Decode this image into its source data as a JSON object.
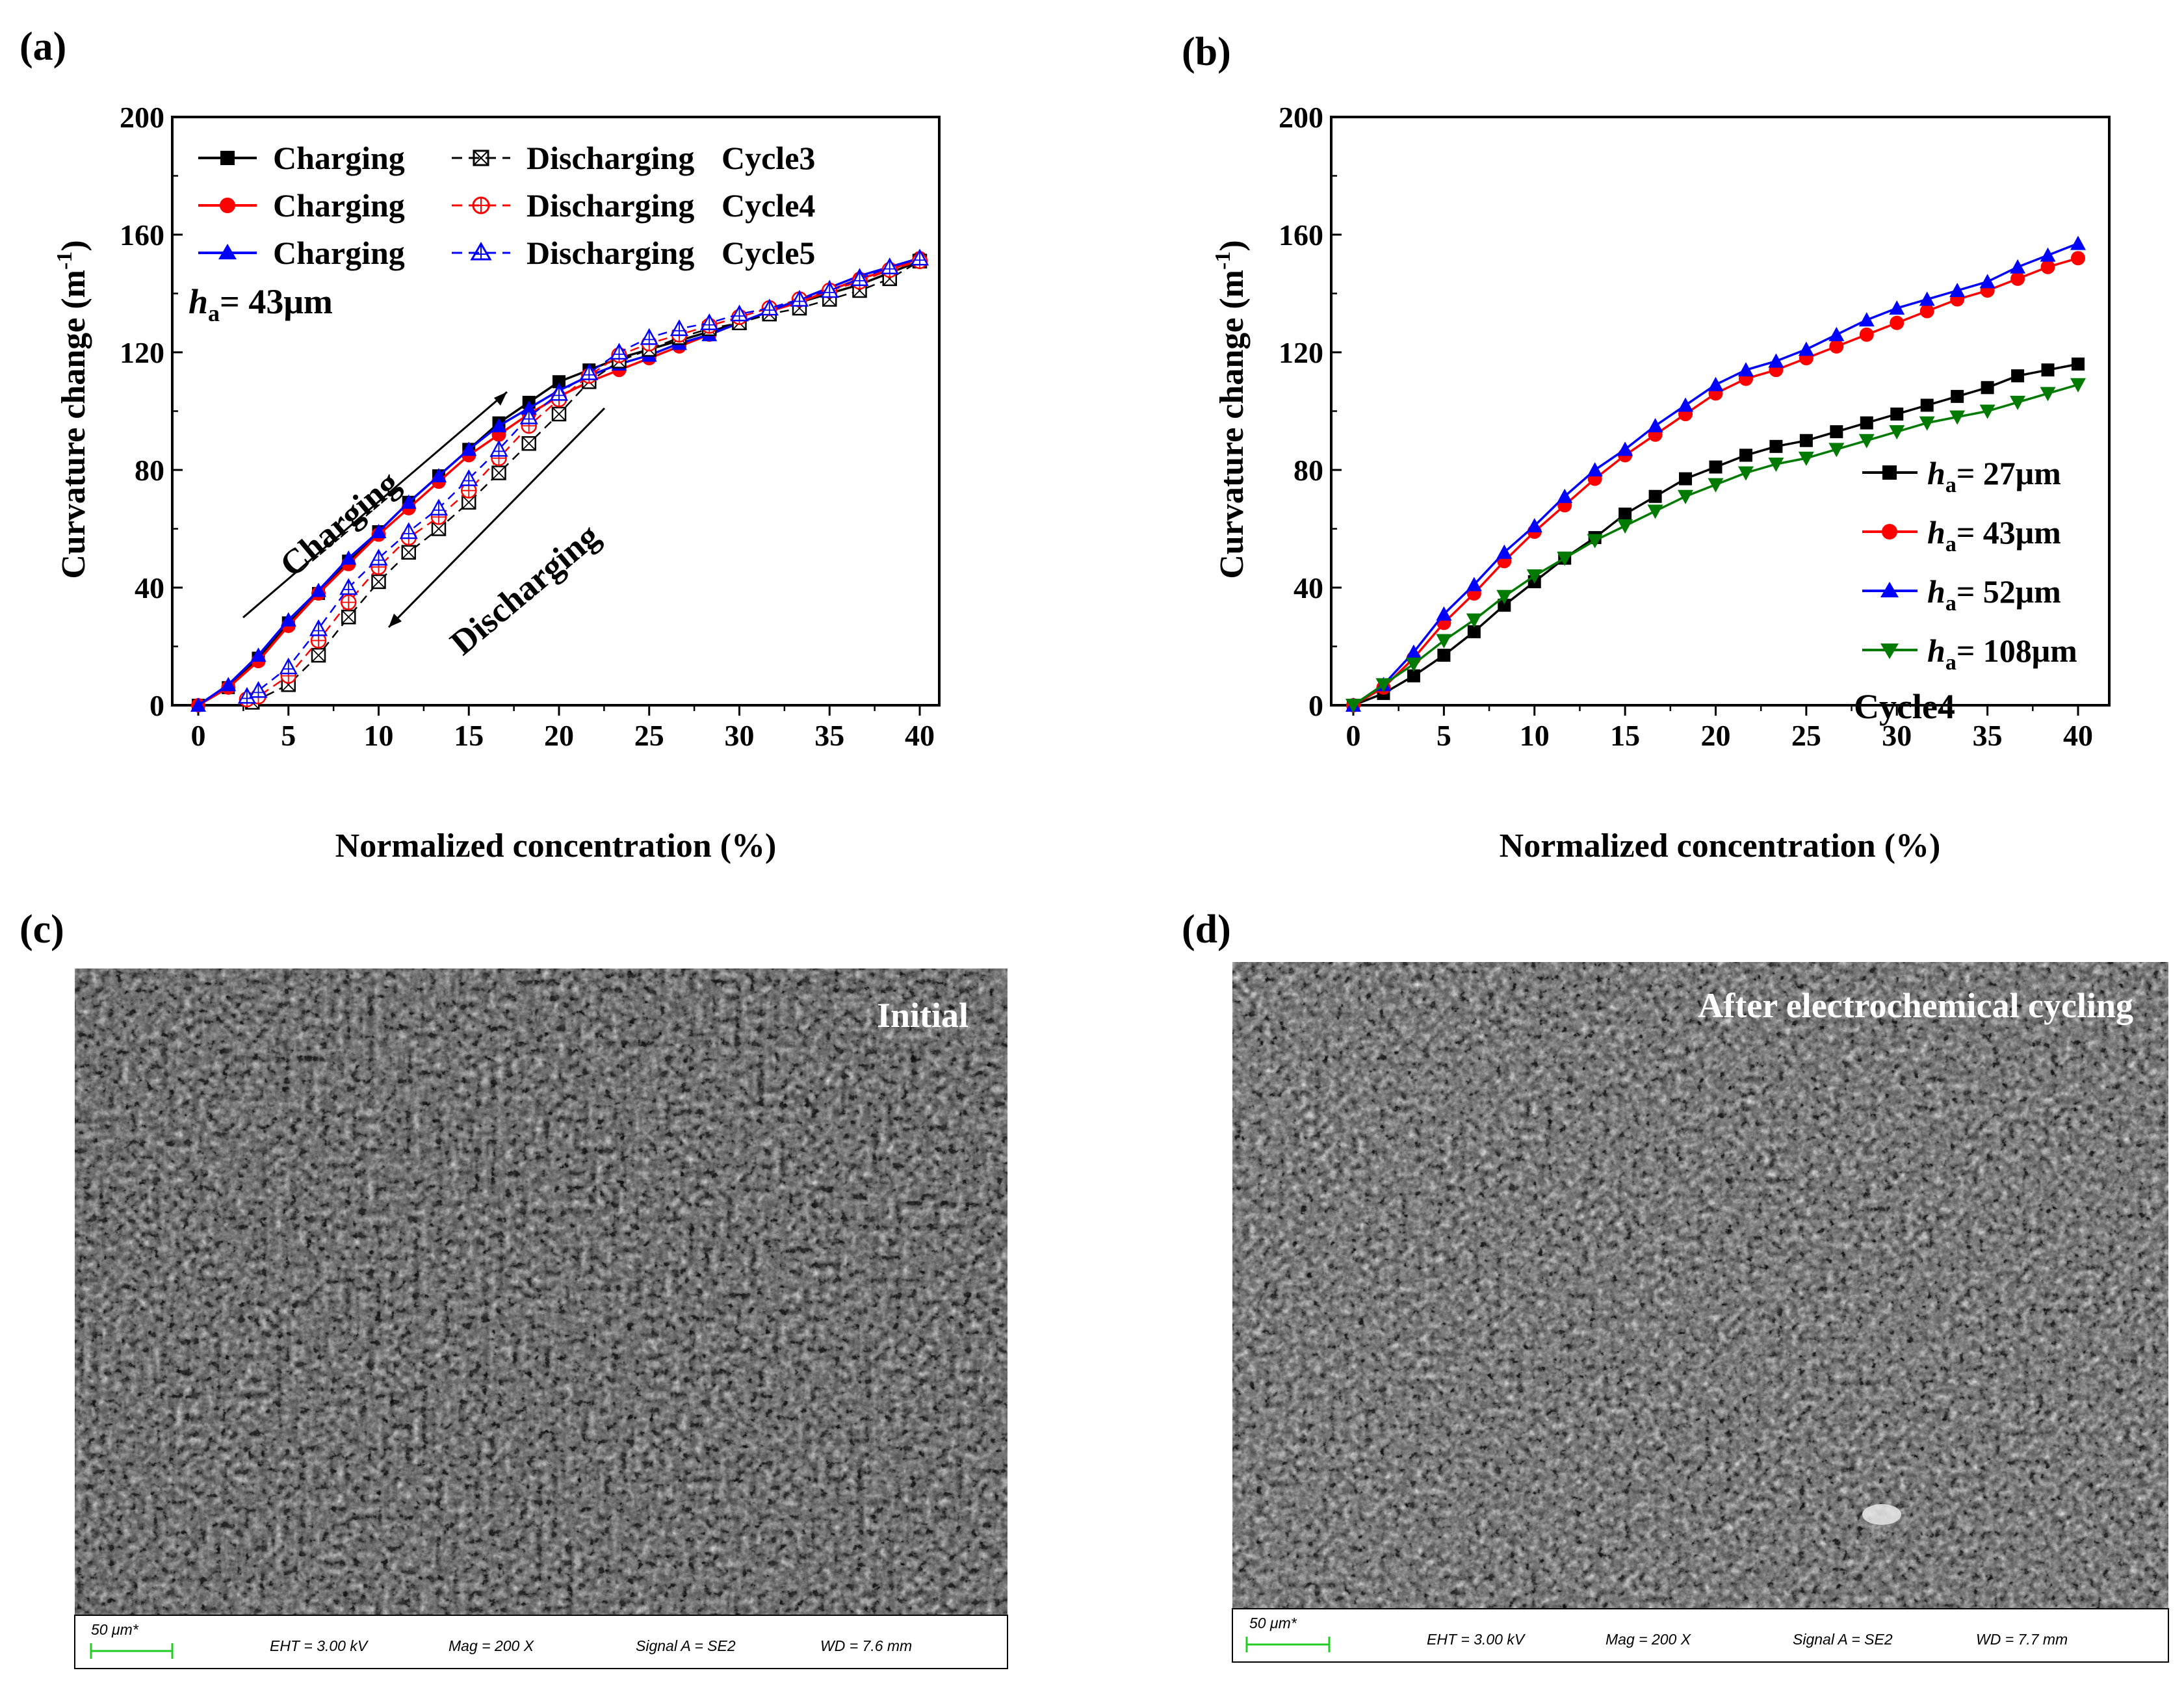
{
  "panels": {
    "a": "(a)",
    "b": "(b)",
    "c": "(c)",
    "d": "(d)"
  },
  "chart_data": [
    {
      "id": "a",
      "type": "line",
      "title": "",
      "xlabel": "Normalized concentration (%)",
      "ylabel_main": "Curvature change (m",
      "ylabel_sup": "-1",
      "ylabel_end": ")",
      "xlim": [
        0,
        40
      ],
      "ylim": [
        0,
        200
      ],
      "xticks": [
        0,
        5,
        10,
        15,
        20,
        25,
        30,
        35,
        40
      ],
      "yticks": [
        0,
        40,
        80,
        120,
        160,
        200
      ],
      "annotation_h_italic": "h",
      "annotation_h_sub": "a",
      "annotation_h_value": "= 43μm",
      "arrow_labels": {
        "charging": "Charging",
        "discharging": "Discharging"
      },
      "legend": [
        {
          "charge_label": "Charging",
          "discharge_label": "Discharging",
          "cycle": "Cycle3"
        },
        {
          "charge_label": "Charging",
          "discharge_label": "Discharging",
          "cycle": "Cycle4"
        },
        {
          "charge_label": "Charging",
          "discharge_label": "Discharging",
          "cycle": "Cycle5"
        }
      ],
      "series": [
        {
          "name": "Charging Cycle3",
          "color": "#000000",
          "marker": "square",
          "dash": false,
          "x": [
            0,
            1.667,
            3.333,
            5,
            6.667,
            8.333,
            10,
            11.667,
            13.333,
            15,
            16.667,
            18.333,
            20,
            21.667,
            23.333,
            25,
            26.667,
            28.333,
            30,
            31.667,
            33.333,
            35,
            36.667,
            38.333,
            40
          ],
          "y": [
            0,
            6,
            16,
            28,
            38,
            49,
            59,
            69,
            78,
            87,
            96,
            103,
            110,
            114,
            118,
            121,
            124,
            127,
            130,
            134,
            137,
            140,
            143,
            147,
            151
          ]
        },
        {
          "name": "Charging Cycle4",
          "color": "#ff0000",
          "marker": "circle",
          "dash": false,
          "x": [
            0,
            1.667,
            3.333,
            5,
            6.667,
            8.333,
            10,
            11.667,
            13.333,
            15,
            16.667,
            18.333,
            20,
            21.667,
            23.333,
            25,
            26.667,
            28.333,
            30,
            31.667,
            33.333,
            35,
            36.667,
            38.333,
            40
          ],
          "y": [
            0,
            6,
            15,
            27,
            38,
            48,
            58,
            67,
            76,
            85,
            92,
            99,
            105,
            110,
            114,
            118,
            122,
            126,
            130,
            134,
            137,
            141,
            145,
            148,
            152
          ]
        },
        {
          "name": "Charging Cycle5",
          "color": "#0000ff",
          "marker": "triangle",
          "dash": false,
          "x": [
            0,
            1.667,
            3.333,
            5,
            6.667,
            8.333,
            10,
            11.667,
            13.333,
            15,
            16.667,
            18.333,
            20,
            21.667,
            23.333,
            25,
            26.667,
            28.333,
            30,
            31.667,
            33.333,
            35,
            36.667,
            38.333,
            40
          ],
          "y": [
            0,
            7,
            17,
            29,
            39,
            50,
            59,
            69,
            78,
            87,
            95,
            101,
            107,
            112,
            116,
            119,
            123,
            126,
            130,
            134,
            138,
            142,
            146,
            149,
            152
          ]
        },
        {
          "name": "Discharging Cycle3",
          "color": "#000000",
          "marker": "square-open",
          "dash": true,
          "x": [
            3,
            5,
            6.667,
            8.333,
            10,
            11.667,
            13.333,
            15,
            16.667,
            18.333,
            20,
            21.667,
            23.333,
            25,
            26.667,
            28.333,
            30,
            31.667,
            33.333,
            35,
            36.667,
            38.333,
            40
          ],
          "y": [
            1,
            7,
            17,
            30,
            42,
            52,
            60,
            69,
            79,
            89,
            99,
            110,
            117,
            121,
            125,
            128,
            130,
            133,
            135,
            138,
            141,
            145,
            151
          ]
        },
        {
          "name": "Discharging Cycle4",
          "color": "#ff0000",
          "marker": "circle-open",
          "dash": true,
          "x": [
            2.7,
            3.333,
            5,
            6.667,
            8.333,
            10,
            11.667,
            13.333,
            15,
            16.667,
            18.333,
            20,
            21.667,
            23.333,
            25,
            26.667,
            28.333,
            30,
            31.667,
            33.333,
            35,
            36.667,
            38.333,
            40
          ],
          "y": [
            2,
            3,
            10,
            22,
            35,
            47,
            57,
            64,
            73,
            84,
            95,
            104,
            112,
            119,
            123,
            126,
            129,
            132,
            135,
            138,
            141,
            144,
            148,
            151
          ]
        },
        {
          "name": "Discharging Cycle5",
          "color": "#0000ff",
          "marker": "triangle-open",
          "dash": true,
          "x": [
            2.7,
            3.333,
            5,
            6.667,
            8.333,
            10,
            11.667,
            13.333,
            15,
            16.667,
            18.333,
            20,
            21.667,
            23.333,
            25,
            26.667,
            28.333,
            30,
            31.667,
            33.333,
            35,
            36.667,
            38.333,
            40
          ],
          "y": [
            3,
            5,
            13,
            26,
            40,
            50,
            59,
            67,
            77,
            87,
            98,
            106,
            113,
            120,
            125,
            128,
            130,
            133,
            135,
            138,
            141,
            145,
            149,
            152
          ]
        }
      ]
    },
    {
      "id": "b",
      "type": "line",
      "title": "",
      "xlabel": "Normalized concentration (%)",
      "ylabel_main": "Curvature change (m",
      "ylabel_sup": "-1",
      "ylabel_end": ")",
      "xlim": [
        0,
        40
      ],
      "ylim": [
        0,
        200
      ],
      "xticks": [
        0,
        5,
        10,
        15,
        20,
        25,
        30,
        35,
        40
      ],
      "yticks": [
        0,
        40,
        80,
        120,
        160,
        200
      ],
      "annotation_cycle": "Cycle4",
      "legend": [
        {
          "italic": "h",
          "sub": "a",
          "value": "= 27μm"
        },
        {
          "italic": "h",
          "sub": "a",
          "value": "= 43μm"
        },
        {
          "italic": "h",
          "sub": "a",
          "value": "= 52μm"
        },
        {
          "italic": "h",
          "sub": "a",
          "value": "= 108μm"
        }
      ],
      "series": [
        {
          "name": "ha = 27μm",
          "color": "#000000",
          "marker": "square",
          "x": [
            0,
            1.667,
            3.333,
            5,
            6.667,
            8.333,
            10,
            11.667,
            13.333,
            15,
            16.667,
            18.333,
            20,
            21.667,
            23.333,
            25,
            26.667,
            28.333,
            30,
            31.667,
            33.333,
            35,
            36.667,
            38.333,
            40
          ],
          "y": [
            0,
            4,
            10,
            17,
            25,
            34,
            42,
            50,
            57,
            65,
            71,
            77,
            81,
            85,
            88,
            90,
            93,
            96,
            99,
            102,
            105,
            108,
            112,
            114,
            116
          ]
        },
        {
          "name": "ha = 43μm",
          "color": "#ff0000",
          "marker": "circle",
          "x": [
            0,
            1.667,
            3.333,
            5,
            6.667,
            8.333,
            10,
            11.667,
            13.333,
            15,
            16.667,
            18.333,
            20,
            21.667,
            23.333,
            25,
            26.667,
            28.333,
            30,
            31.667,
            33.333,
            35,
            36.667,
            38.333,
            40
          ],
          "y": [
            0,
            6,
            16,
            28,
            38,
            49,
            59,
            68,
            77,
            85,
            92,
            99,
            106,
            111,
            114,
            118,
            122,
            126,
            130,
            134,
            138,
            141,
            145,
            149,
            152
          ]
        },
        {
          "name": "ha = 52μm",
          "color": "#0000ff",
          "marker": "triangle",
          "x": [
            0,
            1.667,
            3.333,
            5,
            6.667,
            8.333,
            10,
            11.667,
            13.333,
            15,
            16.667,
            18.333,
            20,
            21.667,
            23.333,
            25,
            26.667,
            28.333,
            30,
            31.667,
            33.333,
            35,
            36.667,
            38.333,
            40
          ],
          "y": [
            0,
            7,
            18,
            31,
            41,
            52,
            61,
            71,
            80,
            87,
            95,
            102,
            109,
            114,
            117,
            121,
            126,
            131,
            135,
            138,
            141,
            144,
            149,
            153,
            157
          ]
        },
        {
          "name": "ha = 108μm",
          "color": "#007a00",
          "marker": "triangle-down",
          "x": [
            0,
            1.667,
            3.333,
            5,
            6.667,
            8.333,
            10,
            11.667,
            13.333,
            15,
            16.667,
            18.333,
            20,
            21.667,
            23.333,
            25,
            26.667,
            28.333,
            30,
            31.667,
            33.333,
            35,
            36.667,
            38.333,
            40
          ],
          "y": [
            0,
            7,
            14,
            22,
            29,
            37,
            44,
            50,
            56,
            61,
            66,
            71,
            75,
            79,
            82,
            84,
            87,
            90,
            93,
            96,
            98,
            100,
            103,
            106,
            109
          ]
        }
      ]
    }
  ],
  "sem_images": [
    {
      "id": "c",
      "label": "Initial",
      "scale": "50 μm*",
      "eht": "EHT =  3.00 kV",
      "mag": "Mag =    200 X",
      "signal": "Signal A = SE2",
      "wd": "WD =  7.6 mm"
    },
    {
      "id": "d",
      "label": "After electrochemical cycling",
      "scale": "50 μm*",
      "eht": "EHT =  3.00 kV",
      "mag": "Mag =    200 X",
      "signal": "Signal A = SE2",
      "wd": "WD =  7.7 mm"
    }
  ]
}
